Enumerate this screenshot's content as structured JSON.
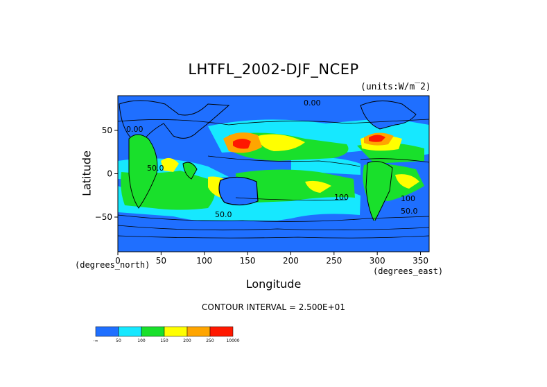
{
  "chart_data": {
    "type": "heatmap",
    "title": "LHTFL_2002-DJF_NCEP",
    "units_label": "(units:W/m‾2)",
    "xlabel": "Longitude",
    "ylabel": "Latitude",
    "x_unit": "(degrees_east)",
    "y_unit": "(degrees_north)",
    "xlim": [
      0,
      360
    ],
    "ylim": [
      -90,
      90
    ],
    "x_ticks": [
      0,
      50,
      100,
      150,
      200,
      250,
      300,
      350
    ],
    "y_ticks": [
      50,
      0,
      -50
    ],
    "y_tick_labels": [
      "50",
      "0",
      "−50"
    ],
    "contour_interval_text": "CONTOUR INTERVAL = 2.500E+01",
    "contour_labels": [
      "0.00",
      "50.0",
      "100",
      "50.0",
      "100",
      "50.0",
      "0.00"
    ],
    "colorbar": {
      "labels": [
        "-∞",
        "50",
        "100",
        "150",
        "200",
        "250",
        "10000"
      ],
      "colors": [
        "#1f6fff",
        "#16e8ff",
        "#19e02b",
        "#ffff00",
        "#ffa500",
        "#ff1800"
      ]
    }
  }
}
